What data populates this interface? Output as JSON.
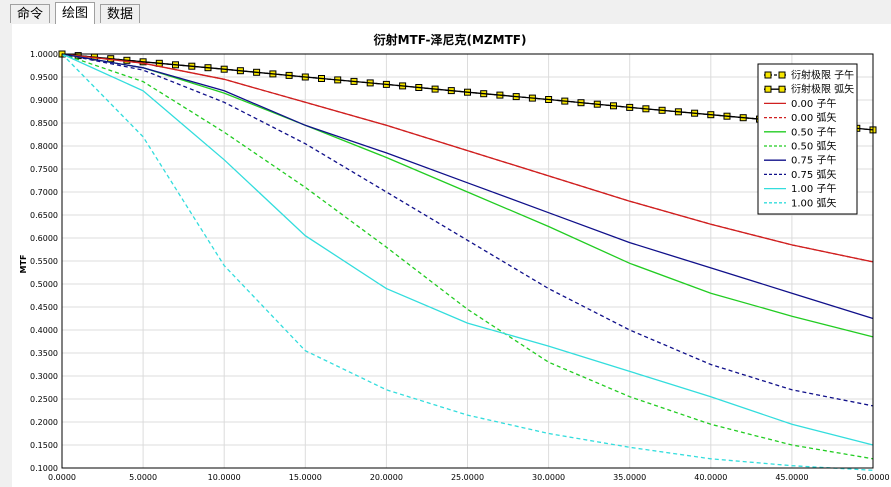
{
  "tabs": [
    {
      "label": "命令"
    },
    {
      "label": "绘图"
    },
    {
      "label": "数据"
    }
  ],
  "chart_data": {
    "type": "line",
    "title": "衍射MTF-泽尼克(MZMTF)",
    "xlabel": "",
    "ylabel": "MTF",
    "xlim": [
      0,
      50
    ],
    "ylim": [
      0.1,
      1.0
    ],
    "x_ticks": [
      "0.0000",
      "5.0000",
      "10.0000",
      "15.0000",
      "20.0000",
      "25.0000",
      "30.0000",
      "35.0000",
      "40.0000",
      "45.0000",
      "50.0000"
    ],
    "y_ticks": [
      "1.0000",
      "0.9500",
      "0.9000",
      "0.8500",
      "0.8000",
      "0.7500",
      "0.7000",
      "0.6500",
      "0.6000",
      "0.5500",
      "0.5000",
      "0.4500",
      "0.4000",
      "0.3500",
      "0.3000",
      "0.2500",
      "0.2000",
      "0.1500",
      "0.1000"
    ],
    "grid": true,
    "legend_position": "top-right",
    "series": [
      {
        "name": "衍射极限 子午",
        "color": "#000000",
        "style": "dash-square",
        "x": [
          0,
          5,
          10,
          15,
          20,
          25,
          30,
          35,
          40,
          45,
          50
        ],
        "y": [
          1.0,
          0.983,
          0.967,
          0.95,
          0.934,
          0.917,
          0.901,
          0.884,
          0.868,
          0.852,
          0.835
        ]
      },
      {
        "name": "衍射极限 弧矢",
        "color": "#000000",
        "style": "solid-square",
        "x": [
          0,
          5,
          10,
          15,
          20,
          25,
          30,
          35,
          40,
          45,
          50
        ],
        "y": [
          1.0,
          0.983,
          0.967,
          0.95,
          0.934,
          0.917,
          0.901,
          0.884,
          0.868,
          0.852,
          0.835
        ]
      },
      {
        "name": "0.00 子午",
        "color": "#d02020",
        "style": "solid",
        "x": [
          0,
          5,
          10,
          15,
          20,
          25,
          30,
          35,
          40,
          45,
          50
        ],
        "y": [
          1.0,
          0.98,
          0.945,
          0.895,
          0.845,
          0.79,
          0.735,
          0.68,
          0.63,
          0.585,
          0.548
        ]
      },
      {
        "name": "0.00 弧矢",
        "color": "#d02020",
        "style": "dash",
        "x": [
          0,
          5,
          10,
          15,
          20,
          25,
          30,
          35,
          40,
          45,
          50
        ],
        "y": [
          1.0,
          0.98,
          0.945,
          0.895,
          0.845,
          0.79,
          0.735,
          0.68,
          0.63,
          0.585,
          0.548
        ]
      },
      {
        "name": "0.50 子午",
        "color": "#22cc22",
        "style": "solid",
        "x": [
          0,
          5,
          10,
          15,
          20,
          25,
          30,
          35,
          40,
          45,
          50
        ],
        "y": [
          1.0,
          0.97,
          0.915,
          0.845,
          0.775,
          0.7,
          0.625,
          0.545,
          0.48,
          0.43,
          0.385
        ]
      },
      {
        "name": "0.50 弧矢",
        "color": "#22cc22",
        "style": "dash",
        "x": [
          0,
          5,
          10,
          15,
          20,
          25,
          30,
          35,
          40,
          45,
          50
        ],
        "y": [
          1.0,
          0.94,
          0.83,
          0.71,
          0.58,
          0.445,
          0.33,
          0.255,
          0.195,
          0.15,
          0.12
        ]
      },
      {
        "name": "0.75 子午",
        "color": "#10108a",
        "style": "solid",
        "x": [
          0,
          5,
          10,
          15,
          20,
          25,
          30,
          35,
          40,
          45,
          50
        ],
        "y": [
          1.0,
          0.97,
          0.92,
          0.845,
          0.785,
          0.72,
          0.655,
          0.59,
          0.535,
          0.48,
          0.425
        ]
      },
      {
        "name": "0.75 弧矢",
        "color": "#10108a",
        "style": "dash",
        "x": [
          0,
          5,
          10,
          15,
          20,
          25,
          30,
          35,
          40,
          45,
          50
        ],
        "y": [
          1.0,
          0.965,
          0.895,
          0.805,
          0.7,
          0.595,
          0.49,
          0.4,
          0.325,
          0.27,
          0.235
        ]
      },
      {
        "name": "1.00 子午",
        "color": "#33dddd",
        "style": "solid",
        "x": [
          0,
          5,
          10,
          15,
          20,
          25,
          30,
          35,
          40,
          45,
          50
        ],
        "y": [
          1.0,
          0.92,
          0.77,
          0.605,
          0.49,
          0.415,
          0.365,
          0.31,
          0.255,
          0.195,
          0.15
        ]
      },
      {
        "name": "1.00 弧矢",
        "color": "#33dddd",
        "style": "dash",
        "x": [
          0,
          5,
          10,
          15,
          20,
          25,
          30,
          35,
          40,
          45,
          50
        ],
        "y": [
          1.0,
          0.82,
          0.54,
          0.355,
          0.27,
          0.215,
          0.175,
          0.145,
          0.12,
          0.105,
          0.095
        ]
      }
    ]
  }
}
